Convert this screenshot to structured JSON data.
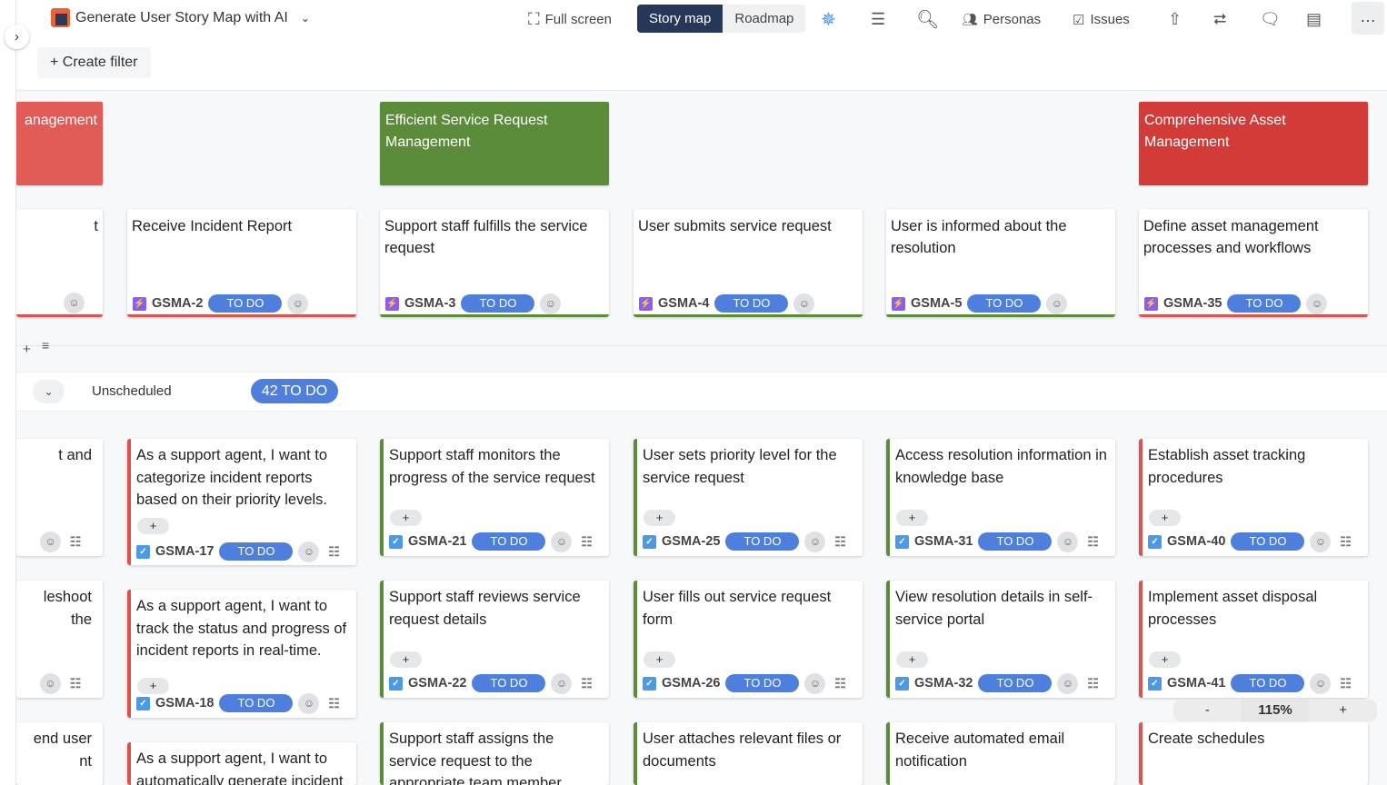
{
  "header": {
    "title": "Generate User Story Map with AI",
    "full_screen": "Full screen",
    "views": [
      "Story map",
      "Roadmap"
    ],
    "personas": "Personas",
    "issues": "Issues",
    "create_filter": "Create filter"
  },
  "colors": {
    "red": "#d9534f",
    "green": "#5b8c3a",
    "todo": "#4f7fdc",
    "nav": "#253858"
  },
  "epics": [
    {
      "label": "anagement",
      "col": 0,
      "color": "#e15b57"
    },
    {
      "label": "Efficient Service Request Management",
      "col": 2,
      "color": "#5b8c3a"
    },
    {
      "label": "Comprehensive Asset Management",
      "col": 5,
      "color": "#d23b38"
    }
  ],
  "steps": [
    {
      "col": 0,
      "text": "t",
      "key": "",
      "status": "",
      "color": "#d9534f"
    },
    {
      "col": 1,
      "text": "Receive Incident Report",
      "key": "GSMA-2",
      "status": "TO DO",
      "color": "#d9534f"
    },
    {
      "col": 2,
      "text": "Support staff fulfills the service request",
      "key": "GSMA-3",
      "status": "TO DO",
      "color": "#5b8c3a"
    },
    {
      "col": 3,
      "text": "User submits service request",
      "key": "GSMA-4",
      "status": "TO DO",
      "color": "#5b8c3a"
    },
    {
      "col": 4,
      "text": "User is informed about the resolution",
      "key": "GSMA-5",
      "status": "TO DO",
      "color": "#5b8c3a"
    },
    {
      "col": 5,
      "text": "Define asset management processes and workflows",
      "key": "GSMA-35",
      "status": "TO DO",
      "color": "#d9534f"
    }
  ],
  "release": {
    "label": "Unscheduled",
    "count": "42 TO DO"
  },
  "stories": [
    {
      "col": 0,
      "row": 0,
      "text": "t and",
      "key": "",
      "status": "",
      "color": "#d9534f"
    },
    {
      "col": 0,
      "row": 1,
      "text": "leshoot the",
      "key": "",
      "status": "",
      "color": "#d9534f"
    },
    {
      "col": 0,
      "row": 2,
      "text": "end user nt",
      "key": "",
      "status": "",
      "color": "#d9534f"
    },
    {
      "col": 1,
      "row": 0,
      "text": "As a support agent, I want to categorize incident reports based on their priority levels.",
      "key": "GSMA-17",
      "status": "TO DO",
      "color": "#d9534f"
    },
    {
      "col": 1,
      "row": 1,
      "text": "As a support agent, I want to track the status and progress of incident reports in real-time.",
      "key": "GSMA-18",
      "status": "TO DO",
      "color": "#d9534f"
    },
    {
      "col": 1,
      "row": 2,
      "text": "As a support agent, I want to automatically generate incident",
      "key": "",
      "status": "",
      "color": "#d9534f"
    },
    {
      "col": 2,
      "row": 0,
      "text": "Support staff monitors the progress of the service request",
      "key": "GSMA-21",
      "status": "TO DO",
      "color": "#5b8c3a"
    },
    {
      "col": 2,
      "row": 1,
      "text": "Support staff reviews service request details",
      "key": "GSMA-22",
      "status": "TO DO",
      "color": "#5b8c3a"
    },
    {
      "col": 2,
      "row": 2,
      "text": "Support staff assigns the service request to the appropriate team member",
      "key": "",
      "status": "",
      "color": "#5b8c3a"
    },
    {
      "col": 3,
      "row": 0,
      "text": "User sets priority level for the service request",
      "key": "GSMA-25",
      "status": "TO DO",
      "color": "#5b8c3a"
    },
    {
      "col": 3,
      "row": 1,
      "text": "User fills out service request form",
      "key": "GSMA-26",
      "status": "TO DO",
      "color": "#5b8c3a"
    },
    {
      "col": 3,
      "row": 2,
      "text": "User attaches relevant files or documents",
      "key": "",
      "status": "",
      "color": "#5b8c3a"
    },
    {
      "col": 4,
      "row": 0,
      "text": "Access resolution information in knowledge base",
      "key": "GSMA-31",
      "status": "TO DO",
      "color": "#5b8c3a"
    },
    {
      "col": 4,
      "row": 1,
      "text": "View resolution details in self-service portal",
      "key": "GSMA-32",
      "status": "TO DO",
      "color": "#5b8c3a"
    },
    {
      "col": 4,
      "row": 2,
      "text": "Receive automated email notification",
      "key": "",
      "status": "",
      "color": "#5b8c3a"
    },
    {
      "col": 5,
      "row": 0,
      "text": "Establish asset tracking procedures",
      "key": "GSMA-40",
      "status": "TO DO",
      "color": "#d9534f"
    },
    {
      "col": 5,
      "row": 1,
      "text": "Implement asset disposal processes",
      "key": "GSMA-41",
      "status": "TO DO",
      "color": "#d9534f"
    },
    {
      "col": 5,
      "row": 2,
      "text": "Create schedules",
      "key": "",
      "status": "",
      "color": "#d9534f"
    }
  ],
  "zoom": {
    "minus": "-",
    "level": "115%",
    "plus": "+"
  }
}
